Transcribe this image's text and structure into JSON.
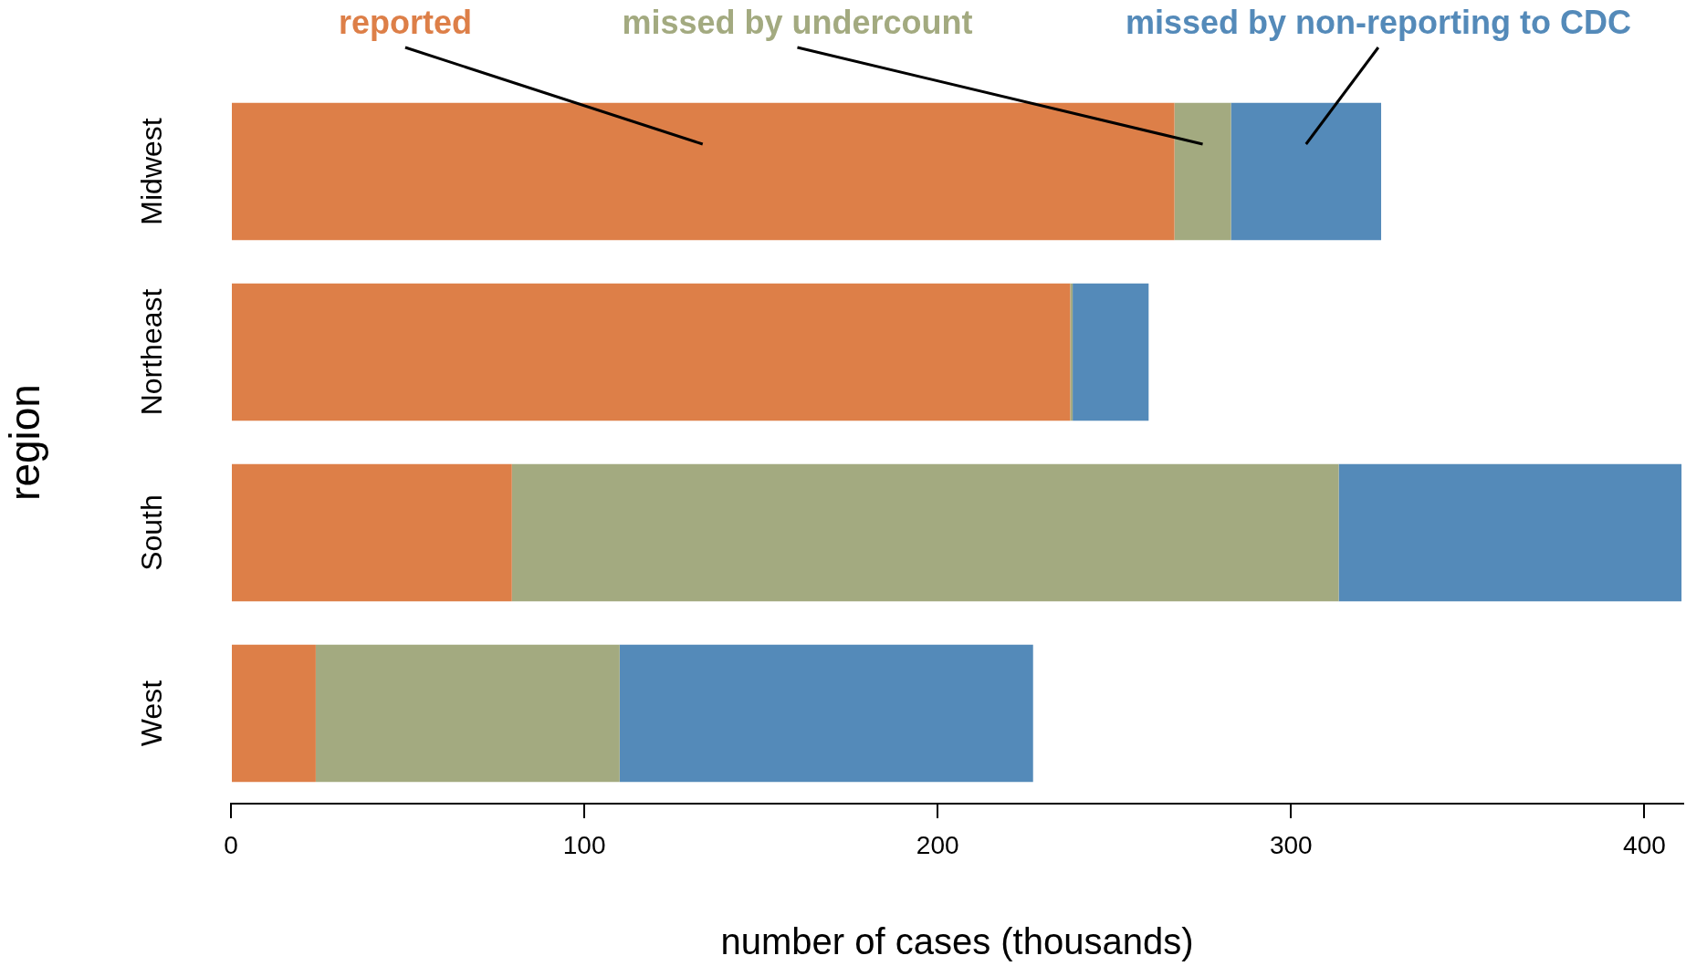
{
  "chart_data": {
    "type": "bar",
    "orientation": "horizontal",
    "stacked": true,
    "xlabel": "number of cases (thousands)",
    "ylabel": "region",
    "categories": [
      "Midwest",
      "Northeast",
      "South",
      "West"
    ],
    "series": [
      {
        "name": "reported",
        "color": "#dd7f48",
        "values": [
          267,
          237.5,
          79.5,
          24
        ]
      },
      {
        "name": "missed by undercount",
        "color": "#a3aa80",
        "values": [
          16,
          0.7,
          234,
          86
        ]
      },
      {
        "name": "missed by non-reporting to CDC",
        "color": "#548ab9",
        "values": [
          42.5,
          21.5,
          97,
          117
        ]
      }
    ],
    "xlim": [
      0,
      411
    ],
    "xticks": [
      0,
      100,
      200,
      300,
      400
    ],
    "grid": false,
    "legend": false
  }
}
